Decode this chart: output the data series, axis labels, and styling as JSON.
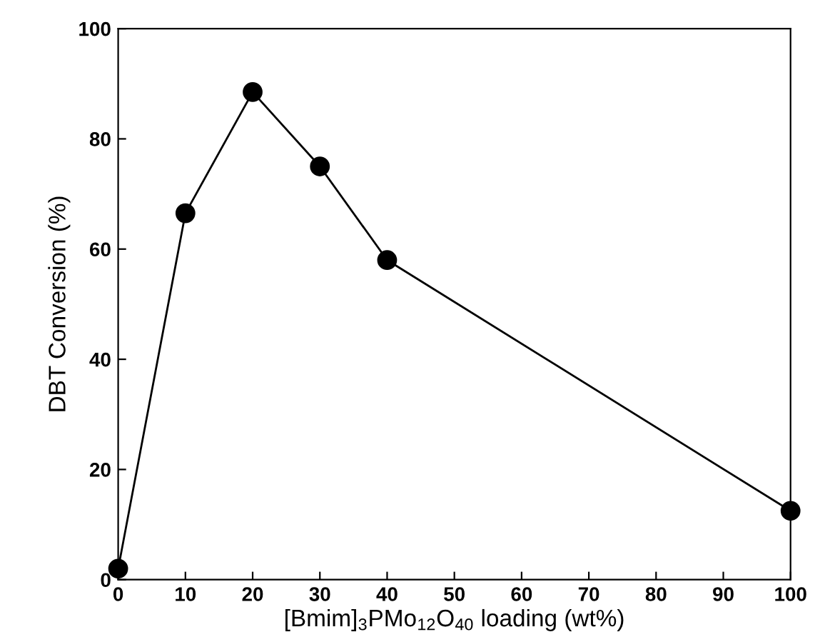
{
  "chart_data": {
    "type": "line",
    "xlabel": "[Bmim]$_{3}$PMo$_{12}$O$_{40}$ loading (wt%)",
    "ylabel": "DBT Conversion (%)",
    "x": [
      0,
      10,
      20,
      30,
      40,
      100
    ],
    "series": [
      {
        "color": "#000000",
        "values": [
          2,
          66.5,
          88.5,
          75,
          58,
          12.5
        ]
      }
    ],
    "xlim": [
      0,
      100
    ],
    "xticks": [
      0,
      10,
      20,
      30,
      40,
      50,
      60,
      70,
      80,
      90,
      100
    ],
    "ylim": [
      0,
      100
    ],
    "yticks": [
      0,
      20,
      40,
      60,
      80,
      100
    ],
    "marker": "circle",
    "line_style": "solid",
    "grid": false,
    "legend": false
  }
}
